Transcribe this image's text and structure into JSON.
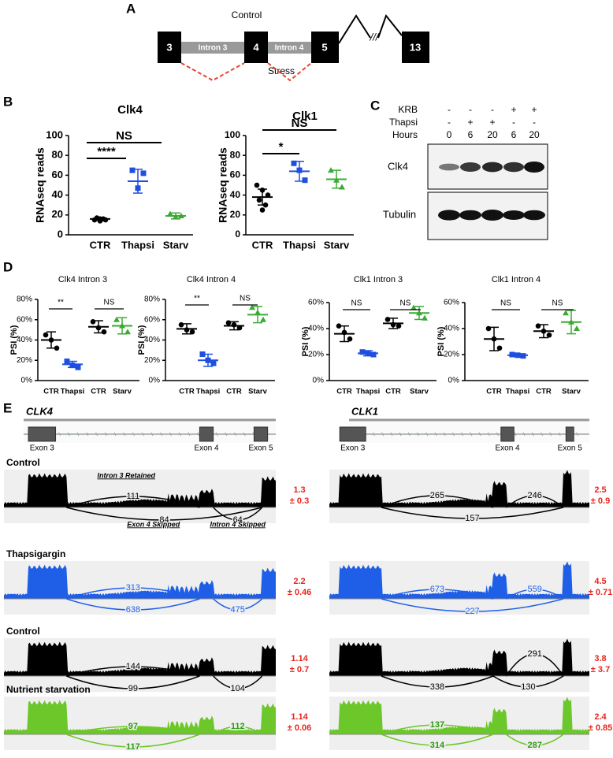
{
  "panel_a": {
    "letter": "A",
    "control": "Control",
    "stress": "Stress",
    "exons": [
      "3",
      "4",
      "5",
      "13"
    ],
    "introns": [
      "Intron 3",
      "Intron 4"
    ],
    "break": "///"
  },
  "panel_b": {
    "letter": "B"
  },
  "panel_c": {
    "letter": "C",
    "rows": [
      {
        "label": "KRB",
        "cells": [
          "-",
          "-",
          "-",
          "+",
          "+"
        ]
      },
      {
        "label": "Thapsi",
        "cells": [
          "-",
          "+",
          "+",
          "-",
          "-"
        ]
      },
      {
        "label": "Hours",
        "cells": [
          0,
          6,
          20,
          6,
          20
        ]
      }
    ],
    "blots": [
      "Clk4",
      "Tubulin"
    ]
  },
  "panel_d": {
    "letter": "D"
  },
  "chart_data": [
    {
      "type": "dot",
      "title": "Clk4",
      "ylabel": "RNAseq reads",
      "categories": [
        "CTR",
        "Thapsi",
        "Starv"
      ],
      "groups": [
        {
          "color": "#000000",
          "values": [
            15,
            16,
            15,
            17,
            16,
            14
          ],
          "mean": 16,
          "sd": 1.5
        },
        {
          "color": "#1f4fe0",
          "values": [
            65,
            47,
            62
          ],
          "mean": 54,
          "sd": 12
        },
        {
          "color": "#3aaa35",
          "values": [
            21,
            18,
            19
          ],
          "mean": 19,
          "sd": 3
        }
      ],
      "ylim": [
        0,
        100
      ],
      "yticks": [
        0,
        20,
        40,
        60,
        80,
        100
      ],
      "annotations": [
        "****",
        "NS"
      ]
    },
    {
      "type": "dot",
      "title": "Clk1",
      "ylabel": "RNAseq reads",
      "categories": [
        "CTR",
        "Thapsi",
        "Starv"
      ],
      "groups": [
        {
          "color": "#000000",
          "values": [
            50,
            45,
            40,
            35,
            30,
            25
          ],
          "mean": 38,
          "sd": 8
        },
        {
          "color": "#1f4fe0",
          "values": [
            72,
            65,
            55
          ],
          "mean": 64,
          "sd": 10
        },
        {
          "color": "#3aaa35",
          "values": [
            65,
            55,
            48
          ],
          "mean": 56,
          "sd": 9
        }
      ],
      "ylim": [
        0,
        100
      ],
      "yticks": [
        0,
        20,
        40,
        60,
        80,
        100
      ],
      "annotations": [
        "*",
        "NS"
      ]
    },
    {
      "type": "dot",
      "title": "Clk4 Intron 3",
      "ylabel": "PSI (%)",
      "categories": [
        "CTR",
        "Thapsi",
        "CTR",
        "Starv"
      ],
      "groups": [
        {
          "color": "#000000",
          "values": [
            45,
            40,
            32
          ],
          "mean": 40,
          "sd": 8
        },
        {
          "color": "#1f4fe0",
          "values": [
            19,
            15,
            13
          ],
          "mean": 16,
          "sd": 3
        },
        {
          "color": "#000000",
          "values": [
            58,
            52,
            48
          ],
          "mean": 53,
          "sd": 6
        },
        {
          "color": "#3aaa35",
          "values": [
            60,
            54,
            48
          ],
          "mean": 54,
          "sd": 8
        }
      ],
      "ylim": [
        0,
        80
      ],
      "yticks": [
        {
          "value": 0,
          "label": "0%"
        },
        {
          "value": 20,
          "label": "20%"
        },
        {
          "value": 40,
          "label": "40%"
        },
        {
          "value": 60,
          "label": "60%"
        },
        {
          "value": 80,
          "label": "80%"
        }
      ],
      "annotations": [
        "**",
        "NS"
      ]
    },
    {
      "type": "dot",
      "title": "Clk4 Intron 4",
      "ylabel": "PSI (%)",
      "categories": [
        "CTR",
        "Thapsi",
        "CTR",
        "Starv"
      ],
      "groups": [
        {
          "color": "#000000",
          "values": [
            55,
            50,
            48
          ],
          "mean": 51,
          "sd": 5
        },
        {
          "color": "#1f4fe0",
          "values": [
            26,
            20,
            17
          ],
          "mean": 20,
          "sd": 6
        },
        {
          "color": "#000000",
          "values": [
            57,
            55,
            52
          ],
          "mean": 54,
          "sd": 4
        },
        {
          "color": "#3aaa35",
          "values": [
            72,
            67,
            60
          ],
          "mean": 65,
          "sd": 8
        }
      ],
      "ylim": [
        0,
        80
      ],
      "yticks": [
        {
          "value": 0,
          "label": "0%"
        },
        {
          "value": 20,
          "label": "20%"
        },
        {
          "value": 40,
          "label": "40%"
        },
        {
          "value": 60,
          "label": "60%"
        },
        {
          "value": 80,
          "label": "80%"
        }
      ],
      "annotations": [
        "**",
        "NS"
      ]
    },
    {
      "type": "dot",
      "title": "Clk1 Intron 3",
      "ylabel": "PSI (%)",
      "categories": [
        "CTR",
        "Thapsi",
        "CTR",
        "Starv"
      ],
      "groups": [
        {
          "color": "#000000",
          "values": [
            42,
            37,
            32
          ],
          "mean": 36,
          "sd": 6
        },
        {
          "color": "#1f4fe0",
          "values": [
            22,
            21,
            20
          ],
          "mean": 21,
          "sd": 2
        },
        {
          "color": "#000000",
          "values": [
            47,
            43,
            42
          ],
          "mean": 44,
          "sd": 4
        },
        {
          "color": "#3aaa35",
          "values": [
            56,
            52,
            48
          ],
          "mean": 52,
          "sd": 5
        }
      ],
      "ylim": [
        0,
        60
      ],
      "yticks": [
        {
          "value": 0,
          "label": "0%"
        },
        {
          "value": 20,
          "label": "20%"
        },
        {
          "value": 40,
          "label": "40%"
        },
        {
          "value": 60,
          "label": "60%"
        }
      ],
      "annotations": [
        "NS",
        "NS"
      ]
    },
    {
      "type": "dot",
      "title": "Clk1 Intron 4",
      "ylabel": "PSI (%)",
      "categories": [
        "CTR",
        "Thapsi",
        "CTR",
        "Starv"
      ],
      "groups": [
        {
          "color": "#000000",
          "values": [
            40,
            32,
            25
          ],
          "mean": 32,
          "sd": 9
        },
        {
          "color": "#1f4fe0",
          "values": [
            20,
            19.5,
            19
          ],
          "mean": 19.5,
          "sd": 1
        },
        {
          "color": "#000000",
          "values": [
            42,
            38,
            35
          ],
          "mean": 38,
          "sd": 5
        },
        {
          "color": "#3aaa35",
          "values": [
            52,
            45,
            40
          ],
          "mean": 45,
          "sd": 9
        }
      ],
      "ylim": [
        0,
        60
      ],
      "yticks": [
        {
          "value": 0,
          "label": "0%"
        },
        {
          "value": 20,
          "label": "20%"
        },
        {
          "value": 40,
          "label": "40%"
        },
        {
          "value": 60,
          "label": "60%"
        }
      ],
      "annotations": [
        "NS",
        "NS"
      ]
    }
  ],
  "panel_e": {
    "letter": "E",
    "genes": [
      {
        "name": "CLK4",
        "exons": [
          "Exon 3",
          "Exon 4",
          "Exon 5"
        ],
        "tracks": [
          {
            "label": "Control",
            "color": "#000000",
            "junctions": [
              111,
              84,
              64
            ],
            "annotations": [
              "Intron 3 Retained",
              "Exon 4 Skipped",
              "Intron 4 Skipped"
            ],
            "ratio": "1.3",
            "ratio_sd": "± 0.3"
          },
          {
            "label": "Thapsigargin",
            "color": "#1f5fe8",
            "junctions": [
              313,
              638,
              475
            ],
            "ratio": "2.2",
            "ratio_sd": "± 0.46"
          },
          {
            "label": "Control",
            "color": "#000000",
            "junctions": [
              144,
              99,
              104
            ],
            "ratio": "1.14",
            "ratio_sd": "± 0.7"
          },
          {
            "label": "Nutrient starvation",
            "color": "#6cc82a",
            "junctions": [
              97,
              112,
              117
            ],
            "ratio": "1.14",
            "ratio_sd": "± 0.06"
          }
        ]
      },
      {
        "name": "CLK1",
        "exons": [
          "Exon 3",
          "Exon 4",
          "Exon 5"
        ],
        "tracks": [
          {
            "color": "#000000",
            "junctions": [
              265,
              246,
              157
            ],
            "ratio": "2.5",
            "ratio_sd": "± 0.9"
          },
          {
            "color": "#1f5fe8",
            "junctions": [
              673,
              559,
              227
            ],
            "ratio": "4.5",
            "ratio_sd": "± 0.71"
          },
          {
            "color": "#000000",
            "junctions": [
              291,
              338,
              130
            ],
            "ratio": "3.8",
            "ratio_sd": "± 3.7"
          },
          {
            "color": "#6cc82a",
            "junctions": [
              137,
              314,
              287
            ],
            "ratio": "2.4",
            "ratio_sd": "± 0.85"
          }
        ]
      }
    ]
  }
}
